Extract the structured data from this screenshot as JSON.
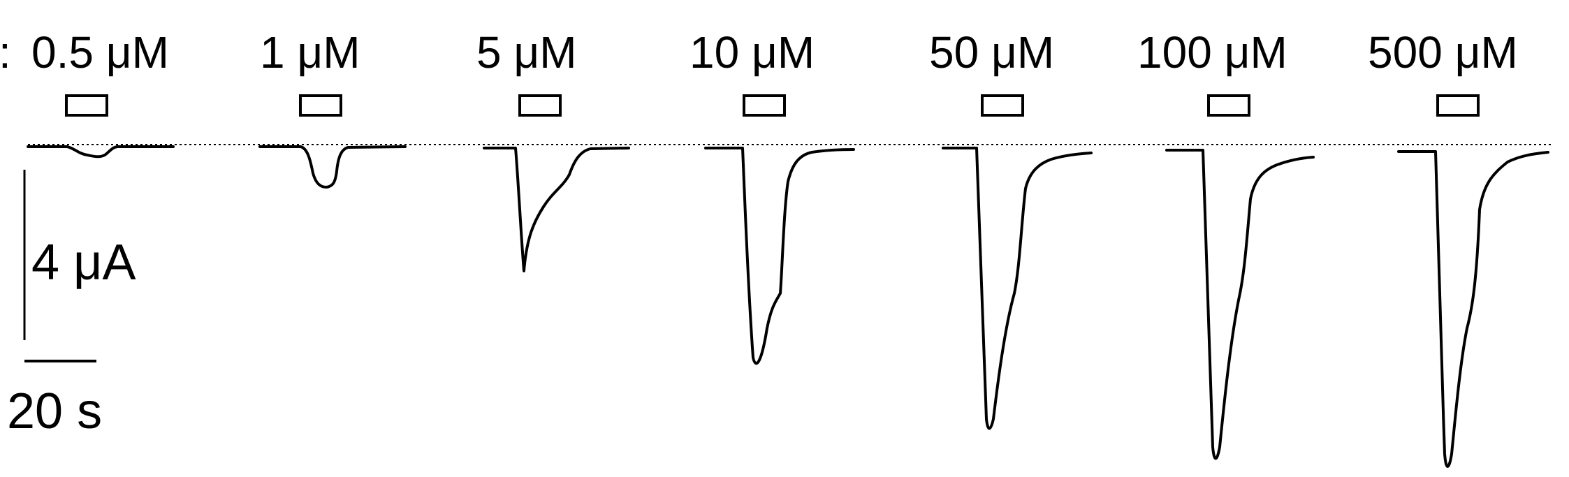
{
  "leading_text": ":",
  "traces": [
    {
      "concentration": "0.5 μM"
    },
    {
      "concentration": "1 μM"
    },
    {
      "concentration": "5 μM"
    },
    {
      "concentration": "10 μM"
    },
    {
      "concentration": "50 μM"
    },
    {
      "concentration": "100 μM"
    },
    {
      "concentration": "500 μM"
    }
  ],
  "scale_bar": {
    "current_label": "4 μA",
    "time_label": "20 s"
  }
}
